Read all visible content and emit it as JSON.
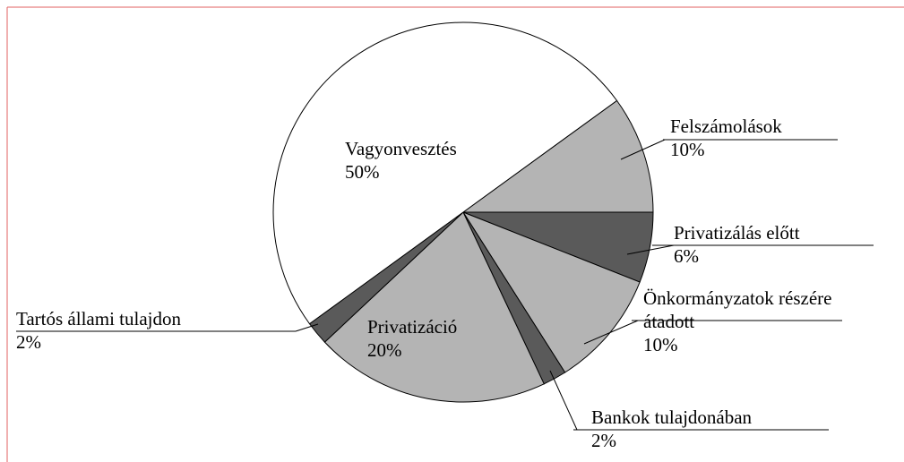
{
  "chart_data": {
    "type": "pie",
    "categories": [
      "Felszámolások",
      "Privatizálás előtt",
      "Önkormányzatok részére átadott",
      "Bankok tulajdonában",
      "Privatizáció",
      "Tartós állami tulajdon",
      "Vagyonvesztés"
    ],
    "values": [
      10,
      6,
      10,
      2,
      20,
      2,
      50
    ],
    "value_labels": [
      "10%",
      "6%",
      "10%",
      "2%",
      "20%",
      "2%",
      "50%"
    ],
    "colors": [
      "#b4b4b4",
      "#5a5a5a",
      "#b4b4b4",
      "#5a5a5a",
      "#b4b4b4",
      "#5a5a5a",
      "#ffffff"
    ]
  }
}
